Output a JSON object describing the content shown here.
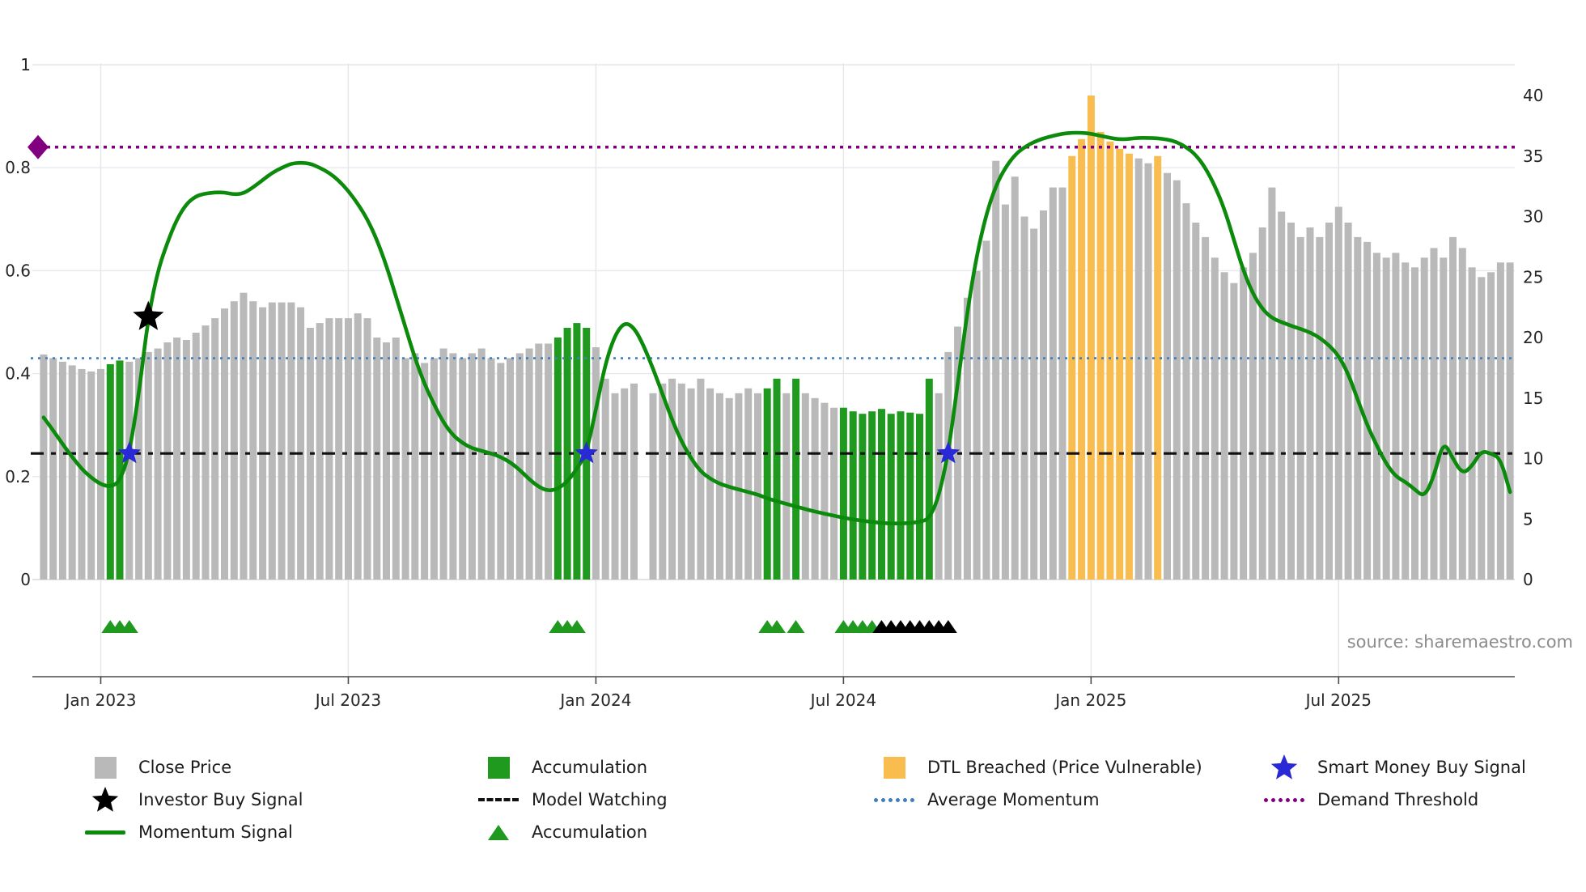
{
  "source_note": "source: sharemaestro.com",
  "colors": {
    "close_price": "#b9b9b9",
    "accumulation": "#1f9a1f",
    "dtl_breached": "#f9bd4f",
    "momentum_line": "#0b8a0b",
    "average_momentum": "#3f7fbf",
    "model_watching": "#111111",
    "demand_threshold": "#800080",
    "smart_money_star": "#2929d6",
    "investor_star": "#000000",
    "black_triangle": "#000000",
    "grid_h": "#e4e9ef",
    "grid_v": "#e6e6e6",
    "spine": "#4a4a4a",
    "axis_text": "#262626",
    "source_text": "#8c8c8c"
  },
  "chart_data": {
    "type": "bar",
    "title": "",
    "xlabel": "",
    "ylabel": "",
    "x_tick_labels": [
      "Jan 2023",
      "Jul 2023",
      "Jan 2024",
      "Jul 2024",
      "Jan 2025",
      "Jul 2025"
    ],
    "x_tick_indices": [
      6,
      32,
      58,
      84,
      110,
      136
    ],
    "left_axis": {
      "series": "Momentum Signal",
      "range": [
        0,
        1
      ],
      "ticks": [
        0,
        0.2,
        0.4,
        0.6,
        0.8,
        1
      ],
      "tick_labels": [
        "0",
        "0.2",
        "0.4",
        "0.6",
        "0.8",
        "1"
      ]
    },
    "right_axis": {
      "series": "Close Price",
      "range": [
        0,
        40
      ],
      "ticks": [
        0,
        5,
        10,
        15,
        20,
        25,
        30,
        35,
        40
      ],
      "tick_labels": [
        "0",
        "5",
        "10",
        "15",
        "20",
        "25",
        "30",
        "35",
        "40"
      ]
    },
    "bars": {
      "name": "Close Price (weekly, right axis)",
      "values": [
        18.6,
        18.3,
        18.0,
        17.7,
        17.4,
        17.2,
        17.4,
        17.8,
        18.1,
        18.0,
        18.3,
        18.8,
        19.1,
        19.6,
        20.0,
        19.8,
        20.4,
        21.0,
        21.6,
        22.4,
        23.0,
        23.7,
        23.0,
        22.5,
        22.9,
        22.9,
        22.9,
        22.5,
        20.8,
        21.2,
        21.6,
        21.6,
        21.6,
        22.0,
        21.6,
        20.0,
        19.6,
        20.0,
        18.3,
        18.7,
        17.9,
        18.3,
        19.1,
        18.7,
        18.3,
        18.7,
        19.1,
        18.3,
        17.9,
        18.3,
        18.7,
        19.1,
        19.5,
        19.5,
        20.0,
        20.8,
        21.2,
        20.8,
        19.2,
        16.6,
        15.4,
        15.8,
        16.2,
        null,
        15.4,
        16.2,
        16.6,
        16.2,
        15.8,
        16.6,
        15.8,
        15.4,
        15.0,
        15.4,
        15.8,
        15.4,
        15.8,
        16.6,
        15.4,
        16.6,
        15.4,
        15.0,
        14.6,
        14.2,
        14.2,
        13.9,
        13.7,
        13.9,
        14.1,
        13.7,
        13.9,
        13.8,
        13.7,
        16.6,
        15.4,
        18.8,
        20.9,
        23.3,
        25.5,
        28.0,
        34.6,
        31.0,
        33.3,
        30.0,
        29.0,
        30.5,
        32.4,
        32.4,
        35.0,
        36.4,
        40.0,
        37.0,
        36.2,
        35.6,
        35.2,
        34.8,
        34.4,
        35.0,
        33.6,
        33.0,
        31.1,
        29.5,
        28.3,
        26.6,
        25.4,
        24.5,
        25.8,
        27.0,
        29.1,
        32.4,
        30.4,
        29.5,
        28.3,
        29.1,
        28.3,
        29.5,
        30.8,
        29.5,
        28.3,
        27.9,
        27.0,
        26.6,
        27.0,
        26.2,
        25.8,
        26.6,
        27.4,
        26.6,
        28.3,
        27.4,
        25.8,
        25.0,
        25.4,
        26.2,
        26.2
      ],
      "color_runs": [
        [
          "c",
          7
        ],
        [
          "a",
          2
        ],
        [
          "c",
          45
        ],
        [
          "a",
          4
        ],
        [
          "c",
          5
        ],
        [
          ".",
          1
        ],
        [
          "c",
          12
        ],
        [
          "a",
          2
        ],
        [
          "c",
          1
        ],
        [
          "a",
          1
        ],
        [
          "c",
          4
        ],
        [
          "a",
          10
        ],
        [
          "c",
          14
        ],
        [
          "d",
          7
        ],
        [
          "c",
          2
        ],
        [
          "d",
          1
        ],
        [
          "c",
          37
        ]
      ],
      "color_legend": {
        "c": "Close Price",
        "a": "Accumulation",
        "d": "DTL Breached (Price Vulnerable)",
        ".": "gap"
      }
    },
    "momentum": {
      "name": "Momentum Signal (left axis)",
      "values": [
        0.315,
        0.29,
        0.263,
        0.238,
        0.215,
        0.198,
        0.185,
        0.18,
        0.19,
        0.245,
        0.36,
        0.51,
        0.6,
        0.655,
        0.7,
        0.73,
        0.745,
        0.75,
        0.752,
        0.752,
        0.748,
        0.75,
        0.762,
        0.776,
        0.79,
        0.8,
        0.808,
        0.81,
        0.808,
        0.8,
        0.79,
        0.775,
        0.755,
        0.73,
        0.7,
        0.66,
        0.61,
        0.55,
        0.49,
        0.43,
        0.38,
        0.34,
        0.305,
        0.28,
        0.265,
        0.255,
        0.25,
        0.245,
        0.238,
        0.228,
        0.213,
        0.195,
        0.18,
        0.172,
        0.176,
        0.19,
        0.215,
        0.245,
        0.33,
        0.42,
        0.475,
        0.5,
        0.49,
        0.455,
        0.41,
        0.36,
        0.31,
        0.268,
        0.235,
        0.21,
        0.196,
        0.186,
        0.18,
        0.175,
        0.17,
        0.165,
        0.158,
        0.152,
        0.147,
        0.142,
        0.137,
        0.132,
        0.128,
        0.124,
        0.12,
        0.117,
        0.114,
        0.112,
        0.11,
        0.109,
        0.109,
        0.11,
        0.112,
        0.118,
        0.16,
        0.245,
        0.38,
        0.52,
        0.63,
        0.71,
        0.765,
        0.8,
        0.825,
        0.84,
        0.85,
        0.857,
        0.862,
        0.866,
        0.868,
        0.868,
        0.866,
        0.862,
        0.858,
        0.855,
        0.856,
        0.858,
        0.858,
        0.857,
        0.855,
        0.85,
        0.84,
        0.825,
        0.8,
        0.765,
        0.72,
        0.66,
        0.6,
        0.555,
        0.525,
        0.508,
        0.5,
        0.493,
        0.487,
        0.48,
        0.47,
        0.455,
        0.435,
        0.4,
        0.35,
        0.3,
        0.26,
        0.225,
        0.2,
        0.19,
        0.175,
        0.16,
        0.2,
        0.27,
        0.235,
        0.205,
        0.22,
        0.25,
        0.245,
        0.235,
        0.17
      ]
    },
    "hlines": {
      "demand_threshold": 0.84,
      "average_momentum": 0.43,
      "model_watching": 0.245
    },
    "markers": {
      "investor_buy_signal": {
        "index": 11,
        "value": 0.51
      },
      "smart_money_buy_signals": [
        {
          "index": 9,
          "value": 0.245
        },
        {
          "index": 57,
          "value": 0.245
        },
        {
          "index": 95,
          "value": 0.245
        }
      ],
      "demand_threshold_marker": {
        "value": 0.84
      },
      "accumulation_triangles": [
        7,
        8,
        9,
        54,
        55,
        56,
        76,
        77,
        79,
        84,
        85,
        86,
        87
      ],
      "black_triangles": [
        88,
        89,
        90,
        91,
        92,
        93,
        94,
        95
      ]
    }
  },
  "legend": {
    "columns": [
      {
        "items": [
          {
            "swatch": "square",
            "color_key": "close_price",
            "label": "Close Price",
            "name": "legend-close-price"
          },
          {
            "swatch": "star",
            "color_key": "investor_star",
            "label": "Investor Buy Signal",
            "name": "legend-investor-buy-signal"
          },
          {
            "swatch": "thick-line",
            "color_key": "momentum_line",
            "label": "Momentum Signal",
            "name": "legend-momentum-signal"
          }
        ]
      },
      {
        "items": [
          {
            "swatch": "square",
            "color_key": "accumulation",
            "label": "Accumulation",
            "name": "legend-accumulation-bar"
          },
          {
            "swatch": "dashed-line",
            "color_key": "model_watching",
            "label": "Model Watching",
            "name": "legend-model-watching"
          },
          {
            "swatch": "triangle",
            "color_key": "accumulation",
            "label": "Accumulation",
            "name": "legend-accumulation-triangle"
          }
        ]
      },
      {
        "items": [
          {
            "swatch": "square",
            "color_key": "dtl_breached",
            "label": "DTL Breached (Price Vulnerable)",
            "name": "legend-dtl-breached"
          },
          {
            "swatch": "dotted-line",
            "color_key": "average_momentum",
            "label": "Average Momentum",
            "name": "legend-average-momentum"
          }
        ]
      },
      {
        "items": [
          {
            "swatch": "star",
            "color_key": "smart_money_star",
            "label": "Smart Money Buy Signal",
            "name": "legend-smart-money-buy-signal"
          },
          {
            "swatch": "dotted-line",
            "color_key": "demand_threshold",
            "label": "Demand Threshold",
            "name": "legend-demand-threshold"
          }
        ]
      }
    ]
  }
}
